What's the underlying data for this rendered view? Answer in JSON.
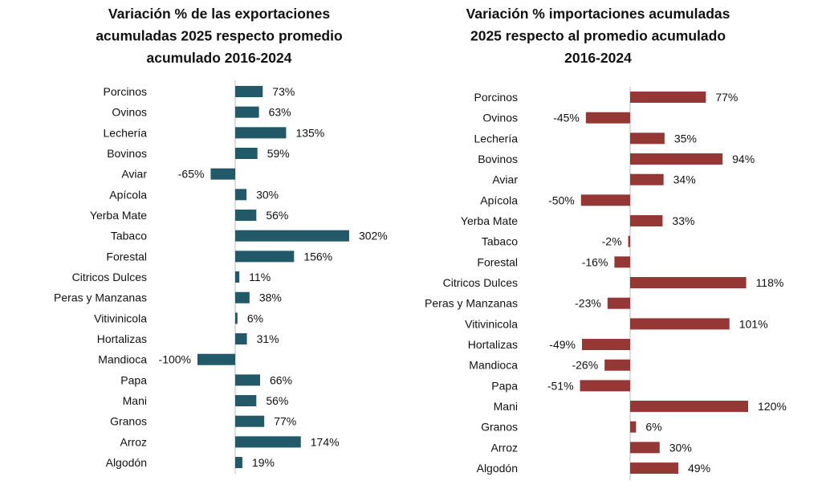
{
  "chart_data": [
    {
      "type": "bar",
      "orientation": "horizontal",
      "title": [
        "Variación % de las exportaciones",
        "acumuladas 2025 respecto promedio",
        "acumulado 2016-2024"
      ],
      "categories": [
        "Porcinos",
        "Ovinos",
        "Lechería",
        "Bovinos",
        "Aviar",
        "Apícola",
        "Yerba Mate",
        "Tabaco",
        "Forestal",
        "Citricos Dulces",
        "Peras y Manzanas",
        "Vitivinicola",
        "Hortalizas",
        "Mandioca",
        "Papa",
        "Mani",
        "Granos",
        "Arroz",
        "Algodón"
      ],
      "values": [
        73,
        63,
        135,
        59,
        -65,
        30,
        56,
        302,
        156,
        11,
        38,
        6,
        31,
        -100,
        66,
        56,
        77,
        174,
        19
      ],
      "value_suffix": "%",
      "color": "#215968",
      "grid": false
    },
    {
      "type": "bar",
      "orientation": "horizontal",
      "title": [
        "Variación % importaciones acumuladas",
        "2025 respecto al promedio acumulado",
        "2016-2024"
      ],
      "categories": [
        "Porcinos",
        "Ovinos",
        "Lechería",
        "Bovinos",
        "Aviar",
        "Apícola",
        "Yerba Mate",
        "Tabaco",
        "Forestal",
        "Citricos Dulces",
        "Peras y Manzanas",
        "Vitivinicola",
        "Hortalizas",
        "Mandioca",
        "Papa",
        "Mani",
        "Granos",
        "Arroz",
        "Algodón"
      ],
      "values": [
        77,
        -45,
        35,
        94,
        34,
        -50,
        33,
        -2,
        -16,
        118,
        -23,
        101,
        -49,
        -26,
        -51,
        120,
        6,
        30,
        49
      ],
      "value_suffix": "%",
      "color": "#953735",
      "grid": false
    }
  ]
}
